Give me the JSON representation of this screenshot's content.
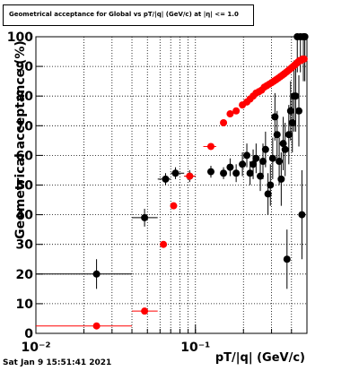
{
  "title": "Geometrical acceptance for Global vs pT/|q| (GeV/c) at |η| <= 1.0",
  "timestamp": "Sat Jan  9 15:51:41 2021",
  "colors": {
    "series_black": "#000000",
    "series_red": "#ff0000",
    "grid": "#000000"
  },
  "chart_data": {
    "type": "scatter",
    "title": "Geometrical acceptance for Global vs pT/|q| (GeV/c) at |η| <= 1.0",
    "xlabel": "pT/|q| (GeV/c)",
    "ylabel": "Geometrical acceptance (%)",
    "xscale": "log",
    "xlim": [
      0.01,
      0.5
    ],
    "ylim": [
      0,
      100
    ],
    "yticks": [
      "0",
      "10",
      "20",
      "30",
      "40",
      "50",
      "60",
      "70",
      "80",
      "90",
      "100"
    ],
    "xticks": [
      "10⁻²",
      "10⁻¹"
    ],
    "grid": true,
    "series": [
      {
        "color": "black",
        "points": [
          {
            "x": 0.024,
            "y": 20,
            "xerr": [
              0.01,
              0.04
            ],
            "yerr": 5
          },
          {
            "x": 0.048,
            "y": 39,
            "xerr": [
              0.04,
              0.058
            ],
            "yerr": 3
          },
          {
            "x": 0.065,
            "y": 52,
            "xerr": [
              0.058,
              0.07
            ],
            "yerr": 2
          },
          {
            "x": 0.075,
            "y": 54,
            "xerr": [
              0.07,
              0.085
            ],
            "yerr": 2
          },
          {
            "x": 0.092,
            "y": 53,
            "xerr": [
              0.085,
              0.1
            ],
            "yerr": 2
          },
          {
            "x": 0.125,
            "y": 54.5,
            "yerr": 2
          },
          {
            "x": 0.15,
            "y": 54,
            "yerr": 2
          },
          {
            "x": 0.165,
            "y": 56,
            "yerr": 3
          },
          {
            "x": 0.18,
            "y": 54,
            "yerr": 3
          },
          {
            "x": 0.197,
            "y": 57,
            "yerr": 4
          },
          {
            "x": 0.21,
            "y": 60,
            "yerr": 4
          },
          {
            "x": 0.22,
            "y": 54,
            "yerr": 4
          },
          {
            "x": 0.23,
            "y": 57,
            "yerr": 5
          },
          {
            "x": 0.24,
            "y": 59,
            "yerr": 5
          },
          {
            "x": 0.255,
            "y": 53,
            "yerr": 5
          },
          {
            "x": 0.265,
            "y": 58,
            "yerr": 6
          },
          {
            "x": 0.275,
            "y": 62,
            "yerr": 6
          },
          {
            "x": 0.285,
            "y": 47,
            "yerr": 7
          },
          {
            "x": 0.295,
            "y": 50,
            "yerr": 7
          },
          {
            "x": 0.305,
            "y": 59,
            "yerr": 7
          },
          {
            "x": 0.315,
            "y": 73,
            "yerr": 8
          },
          {
            "x": 0.325,
            "y": 67,
            "yerr": 8
          },
          {
            "x": 0.335,
            "y": 58,
            "yerr": 8
          },
          {
            "x": 0.345,
            "y": 52,
            "yerr": 9
          },
          {
            "x": 0.355,
            "y": 64,
            "yerr": 9
          },
          {
            "x": 0.365,
            "y": 62,
            "yerr": 9
          },
          {
            "x": 0.375,
            "y": 25,
            "yerr": 10
          },
          {
            "x": 0.385,
            "y": 67,
            "yerr": 10
          },
          {
            "x": 0.395,
            "y": 75,
            "yerr": 10
          },
          {
            "x": 0.405,
            "y": 71,
            "yerr": 10
          },
          {
            "x": 0.415,
            "y": 80,
            "yerr": 12
          },
          {
            "x": 0.425,
            "y": 80,
            "yerr": 12
          },
          {
            "x": 0.435,
            "y": 100,
            "yerr": 12
          },
          {
            "x": 0.445,
            "y": 75,
            "yerr": 12
          },
          {
            "x": 0.455,
            "y": 100,
            "yerr": 12
          },
          {
            "x": 0.465,
            "y": 40,
            "yerr": 15
          },
          {
            "x": 0.475,
            "y": 100,
            "yerr": 15
          },
          {
            "x": 0.485,
            "y": 100,
            "yerr": 15
          }
        ]
      },
      {
        "color": "red",
        "points": [
          {
            "x": 0.024,
            "y": 2.5,
            "xerr": [
              0.01,
              0.04
            ]
          },
          {
            "x": 0.048,
            "y": 7.5,
            "xerr": [
              0.04,
              0.058
            ]
          },
          {
            "x": 0.063,
            "y": 30
          },
          {
            "x": 0.073,
            "y": 43
          },
          {
            "x": 0.092,
            "y": 53,
            "xerr": [
              0.085,
              0.1
            ]
          },
          {
            "x": 0.125,
            "y": 63,
            "xerr": [
              0.112,
              0.135
            ]
          },
          {
            "x": 0.15,
            "y": 71
          },
          {
            "x": 0.165,
            "y": 74
          },
          {
            "x": 0.18,
            "y": 75
          },
          {
            "x": 0.197,
            "y": 77
          },
          {
            "x": 0.21,
            "y": 78
          },
          {
            "x": 0.22,
            "y": 79
          },
          {
            "x": 0.23,
            "y": 80
          },
          {
            "x": 0.24,
            "y": 81
          },
          {
            "x": 0.25,
            "y": 81.5
          },
          {
            "x": 0.26,
            "y": 82
          },
          {
            "x": 0.27,
            "y": 83
          },
          {
            "x": 0.28,
            "y": 83.5
          },
          {
            "x": 0.29,
            "y": 84
          },
          {
            "x": 0.3,
            "y": 84.5
          },
          {
            "x": 0.31,
            "y": 85
          },
          {
            "x": 0.32,
            "y": 85.5
          },
          {
            "x": 0.33,
            "y": 86
          },
          {
            "x": 0.34,
            "y": 86.5
          },
          {
            "x": 0.35,
            "y": 87
          },
          {
            "x": 0.36,
            "y": 87.5
          },
          {
            "x": 0.37,
            "y": 88
          },
          {
            "x": 0.38,
            "y": 88.5
          },
          {
            "x": 0.39,
            "y": 89
          },
          {
            "x": 0.4,
            "y": 89.5
          },
          {
            "x": 0.41,
            "y": 90
          },
          {
            "x": 0.42,
            "y": 90.5
          },
          {
            "x": 0.43,
            "y": 91
          },
          {
            "x": 0.44,
            "y": 91.5
          },
          {
            "x": 0.45,
            "y": 92
          },
          {
            "x": 0.46,
            "y": 92
          },
          {
            "x": 0.47,
            "y": 92.5
          },
          {
            "x": 0.48,
            "y": 92.5
          }
        ]
      }
    ]
  }
}
